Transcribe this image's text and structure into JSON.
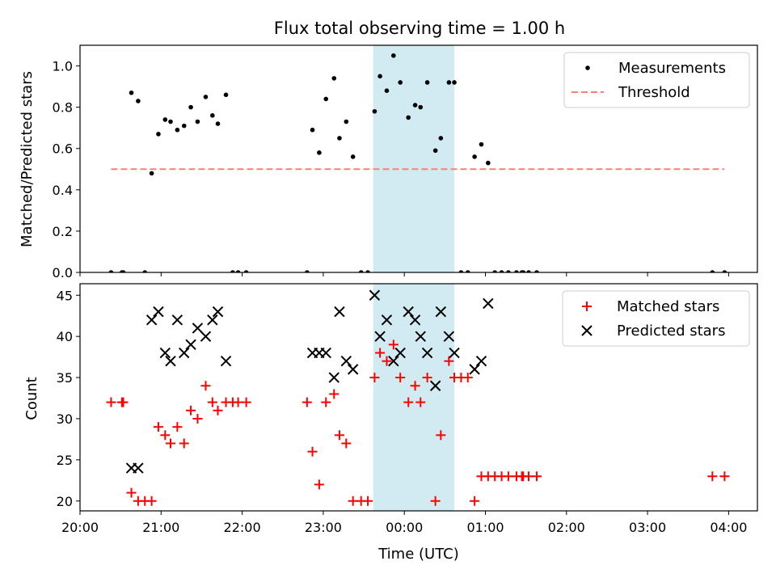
{
  "title": "Flux total observing time = 1.00 h",
  "shaded_window": {
    "start": "23:37",
    "end": "00:37",
    "color": "#add8e6"
  },
  "chart_data": [
    {
      "type": "scatter",
      "ylabel": "Matched/Predicted stars",
      "ylim": [
        0,
        1.1
      ],
      "yticks": [
        0.0,
        0.2,
        0.4,
        0.6,
        0.8,
        1.0
      ],
      "xlim": [
        "20:00",
        "04:20"
      ],
      "legend": "top-right",
      "series": [
        {
          "name": "Measurements",
          "marker": "dot",
          "color": "#000000",
          "points": [
            [
              "20:23",
              0
            ],
            [
              "20:31",
              0
            ],
            [
              "20:32",
              0
            ],
            [
              "20:38",
              0.87
            ],
            [
              "20:43",
              0.83
            ],
            [
              "20:48",
              0
            ],
            [
              "20:53",
              0.48
            ],
            [
              "20:58",
              0.67
            ],
            [
              "21:03",
              0.74
            ],
            [
              "21:07",
              0.73
            ],
            [
              "21:12",
              0.69
            ],
            [
              "21:17",
              0.71
            ],
            [
              "21:22",
              0.8
            ],
            [
              "21:27",
              0.73
            ],
            [
              "21:33",
              0.85
            ],
            [
              "21:38",
              0.76
            ],
            [
              "21:42",
              0.72
            ],
            [
              "21:48",
              0.86
            ],
            [
              "21:53",
              0
            ],
            [
              "21:57",
              0
            ],
            [
              "22:03",
              0
            ],
            [
              "22:48",
              0
            ],
            [
              "22:52",
              0.69
            ],
            [
              "22:57",
              0.58
            ],
            [
              "23:02",
              0.84
            ],
            [
              "23:08",
              0.94
            ],
            [
              "23:12",
              0.65
            ],
            [
              "23:17",
              0.73
            ],
            [
              "23:22",
              0.56
            ],
            [
              "23:28",
              0
            ],
            [
              "23:33",
              0
            ],
            [
              "23:38",
              0.78
            ],
            [
              "23:42",
              0.95
            ],
            [
              "23:47",
              0.88
            ],
            [
              "23:52",
              1.05
            ],
            [
              "23:57",
              0.92
            ],
            [
              "00:03",
              0.75
            ],
            [
              "00:08",
              0.81
            ],
            [
              "00:12",
              0.8
            ],
            [
              "00:17",
              0.92
            ],
            [
              "00:23",
              0.59
            ],
            [
              "00:27",
              0.65
            ],
            [
              "00:33",
              0.92
            ],
            [
              "00:37",
              0.92
            ],
            [
              "00:42",
              0
            ],
            [
              "00:47",
              0
            ],
            [
              "00:52",
              0.56
            ],
            [
              "00:57",
              0.62
            ],
            [
              "01:02",
              0.53
            ],
            [
              "01:07",
              0
            ],
            [
              "01:12",
              0
            ],
            [
              "01:17",
              0
            ],
            [
              "01:23",
              0
            ],
            [
              "01:27",
              0
            ],
            [
              "01:28",
              0
            ],
            [
              "01:32",
              0
            ],
            [
              "01:38",
              0
            ],
            [
              "03:48",
              0
            ],
            [
              "03:57",
              0
            ]
          ]
        },
        {
          "name": "Threshold",
          "line": "dashed",
          "color": "#ff7f7f",
          "points": [
            [
              "20:23",
              0.5
            ],
            [
              "03:57",
              0.5
            ]
          ]
        }
      ]
    },
    {
      "type": "scatter",
      "xlabel": "Time (UTC)",
      "ylabel": "Count",
      "ylim": [
        18.8,
        46.4
      ],
      "yticks": [
        20,
        25,
        30,
        35,
        40,
        45
      ],
      "xlim": [
        "20:00",
        "04:20"
      ],
      "xticks": [
        "20:00",
        "21:00",
        "22:00",
        "23:00",
        "00:00",
        "01:00",
        "02:00",
        "03:00",
        "04:00"
      ],
      "legend": "top-right",
      "series": [
        {
          "name": "Matched stars",
          "marker": "plus",
          "color": "#ff0000",
          "points": [
            [
              "20:23",
              32
            ],
            [
              "20:31",
              32
            ],
            [
              "20:32",
              32
            ],
            [
              "20:38",
              21
            ],
            [
              "20:43",
              20
            ],
            [
              "20:48",
              20
            ],
            [
              "20:53",
              20
            ],
            [
              "20:58",
              29
            ],
            [
              "21:03",
              28
            ],
            [
              "21:07",
              27
            ],
            [
              "21:12",
              29
            ],
            [
              "21:17",
              27
            ],
            [
              "21:22",
              31
            ],
            [
              "21:27",
              30
            ],
            [
              "21:33",
              34
            ],
            [
              "21:38",
              32
            ],
            [
              "21:42",
              31
            ],
            [
              "21:48",
              32
            ],
            [
              "21:53",
              32
            ],
            [
              "21:57",
              32
            ],
            [
              "22:03",
              32
            ],
            [
              "22:48",
              32
            ],
            [
              "22:52",
              26
            ],
            [
              "22:57",
              22
            ],
            [
              "23:02",
              32
            ],
            [
              "23:08",
              33
            ],
            [
              "23:12",
              28
            ],
            [
              "23:17",
              27
            ],
            [
              "23:22",
              20
            ],
            [
              "23:28",
              20
            ],
            [
              "23:33",
              20
            ],
            [
              "23:38",
              35
            ],
            [
              "23:42",
              38
            ],
            [
              "23:47",
              37
            ],
            [
              "23:52",
              39
            ],
            [
              "23:57",
              35
            ],
            [
              "00:03",
              32
            ],
            [
              "00:08",
              34
            ],
            [
              "00:12",
              32
            ],
            [
              "00:17",
              35
            ],
            [
              "00:23",
              20
            ],
            [
              "00:27",
              28
            ],
            [
              "00:33",
              37
            ],
            [
              "00:37",
              35
            ],
            [
              "00:42",
              35
            ],
            [
              "00:47",
              35
            ],
            [
              "00:52",
              20
            ],
            [
              "00:57",
              23
            ],
            [
              "01:02",
              23
            ],
            [
              "01:07",
              23
            ],
            [
              "01:12",
              23
            ],
            [
              "01:17",
              23
            ],
            [
              "01:23",
              23
            ],
            [
              "01:27",
              23
            ],
            [
              "01:28",
              23
            ],
            [
              "01:32",
              23
            ],
            [
              "01:38",
              23
            ],
            [
              "03:48",
              23
            ],
            [
              "03:57",
              23
            ]
          ]
        },
        {
          "name": "Predicted stars",
          "marker": "x",
          "color": "#000000",
          "points": [
            [
              "20:38",
              24
            ],
            [
              "20:43",
              24
            ],
            [
              "20:53",
              42
            ],
            [
              "20:58",
              43
            ],
            [
              "21:03",
              38
            ],
            [
              "21:07",
              37
            ],
            [
              "21:12",
              42
            ],
            [
              "21:17",
              38
            ],
            [
              "21:22",
              39
            ],
            [
              "21:27",
              41
            ],
            [
              "21:33",
              40
            ],
            [
              "21:38",
              42
            ],
            [
              "21:42",
              43
            ],
            [
              "21:48",
              37
            ],
            [
              "22:52",
              38
            ],
            [
              "22:57",
              38
            ],
            [
              "23:02",
              38
            ],
            [
              "23:08",
              35
            ],
            [
              "23:12",
              43
            ],
            [
              "23:17",
              37
            ],
            [
              "23:22",
              36
            ],
            [
              "23:38",
              45
            ],
            [
              "23:42",
              40
            ],
            [
              "23:47",
              42
            ],
            [
              "23:52",
              37
            ],
            [
              "23:57",
              38
            ],
            [
              "00:03",
              43
            ],
            [
              "00:08",
              42
            ],
            [
              "00:12",
              40
            ],
            [
              "00:17",
              38
            ],
            [
              "00:23",
              34
            ],
            [
              "00:27",
              43
            ],
            [
              "00:33",
              40
            ],
            [
              "00:37",
              38
            ],
            [
              "00:52",
              36
            ],
            [
              "00:57",
              37
            ],
            [
              "01:02",
              44
            ]
          ]
        }
      ]
    }
  ]
}
